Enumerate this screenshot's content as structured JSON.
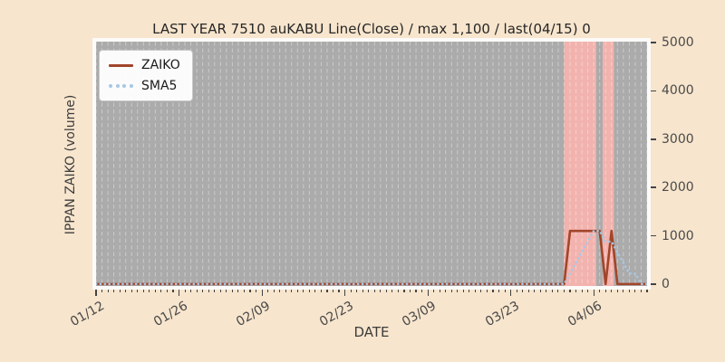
{
  "figure": {
    "title": "LAST YEAR 7510 auKABU Line(Close) / max 1,100 / last(04/15) 0",
    "xlabel": "DATE",
    "ylabel": "IPPAN ZAIKO (volume)",
    "colors": {
      "page_background": "#f7e5cd",
      "plot_background": "#ababab",
      "plot_frame": "#fcfbf9",
      "gridline": "rgba(255,255,255,0.38)",
      "shaded_span": "#f2b3ae",
      "tick": "#444444",
      "tick_label": "#4a4a4a",
      "title_text": "#262626"
    }
  },
  "legend": {
    "items": [
      {
        "label": "ZAIKO",
        "color": "#a2452a",
        "style": "solid"
      },
      {
        "label": "SMA5",
        "color": "#a5c8e6",
        "style": "dotted"
      }
    ]
  },
  "chart_data": {
    "type": "line",
    "title": "LAST YEAR 7510 auKABU Line(Close) / max 1,100 / last(04/15) 0",
    "xlabel": "DATE",
    "ylabel": "IPPAN ZAIKO (volume)",
    "x_start_date": "01/12",
    "x_end_date": "04/15",
    "x_total_days": 93,
    "x_major_ticks": [
      {
        "day": 0,
        "label": "01/12"
      },
      {
        "day": 14,
        "label": "01/26"
      },
      {
        "day": 28,
        "label": "02/09"
      },
      {
        "day": 42,
        "label": "02/23"
      },
      {
        "day": 56,
        "label": "03/09"
      },
      {
        "day": 70,
        "label": "03/23"
      },
      {
        "day": 84,
        "label": "04/06"
      }
    ],
    "x_minor_tick_every_days": 1,
    "y_ticks": [
      0,
      1000,
      2000,
      3000,
      4000,
      5000
    ],
    "ylim": [
      -40,
      5020
    ],
    "y_axis_side": "right",
    "grid": {
      "vertical_daily_dashed": true
    },
    "shaded_spans": [
      {
        "start_day": 79.0,
        "end_day": 84.4,
        "start_date": "04/01",
        "end_date": "04/06"
      },
      {
        "start_day": 85.5,
        "end_day": 87.4,
        "start_date": "04/08",
        "end_date": "04/09"
      }
    ],
    "max_value": 1100,
    "last_point": {
      "date": "04/15",
      "value": 0
    },
    "series": [
      {
        "name": "ZAIKO",
        "style": "solid",
        "color": "#a2452a",
        "width": 2.6,
        "baseline_value": 0,
        "nonzero_points": [
          {
            "day": 80,
            "date": "04/02",
            "value": 1100
          },
          {
            "day": 81,
            "date": "04/03",
            "value": 1100
          },
          {
            "day": 82,
            "date": "04/04",
            "value": 1100
          },
          {
            "day": 83,
            "date": "04/05",
            "value": 1100
          },
          {
            "day": 84,
            "date": "04/06",
            "value": 1100
          },
          {
            "day": 85,
            "date": "04/07",
            "value": 1100
          },
          {
            "day": 87,
            "date": "04/09",
            "value": 1100
          }
        ]
      },
      {
        "name": "SMA5",
        "style": "dotted",
        "color": "#a5c8e6",
        "width": 2.6,
        "baseline_value": 0,
        "nonzero_points": [
          {
            "day": 80,
            "date": "04/02",
            "value": 220
          },
          {
            "day": 81,
            "date": "04/03",
            "value": 440
          },
          {
            "day": 82,
            "date": "04/04",
            "value": 660
          },
          {
            "day": 83,
            "date": "04/05",
            "value": 880
          },
          {
            "day": 84,
            "date": "04/06",
            "value": 1100
          },
          {
            "day": 85,
            "date": "04/07",
            "value": 1100
          },
          {
            "day": 86,
            "date": "04/08",
            "value": 880
          },
          {
            "day": 87,
            "date": "04/09",
            "value": 880
          },
          {
            "day": 88,
            "date": "04/10",
            "value": 660
          },
          {
            "day": 89,
            "date": "04/11",
            "value": 440
          },
          {
            "day": 90,
            "date": "04/12",
            "value": 220
          },
          {
            "day": 91,
            "date": "04/13",
            "value": 220
          }
        ]
      }
    ]
  }
}
